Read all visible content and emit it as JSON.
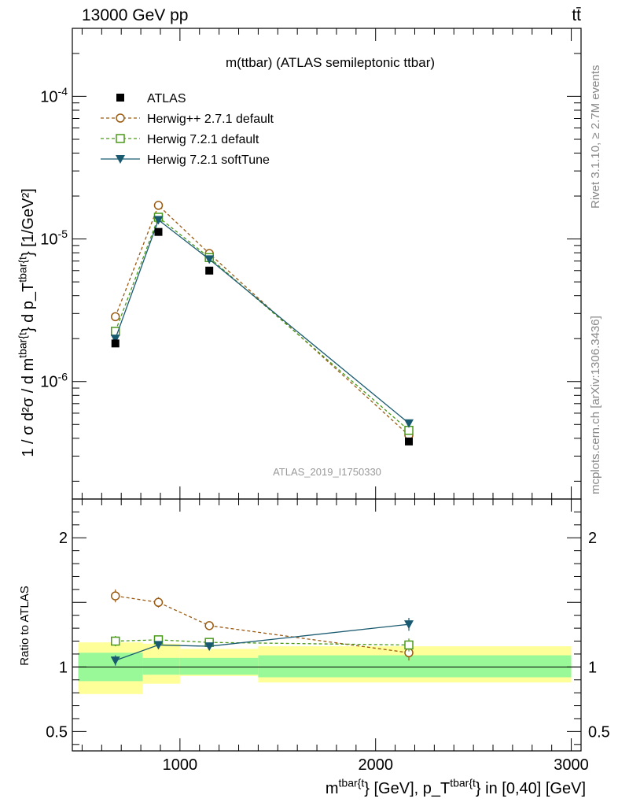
{
  "header": {
    "left_label": "13000 GeV pp",
    "right_label": "tt̄"
  },
  "side_labels": {
    "rivet": "Rivet 3.1.10, ≥ 2.7M events",
    "mcplots": "mcplots.cern.ch [arXiv:1306.3436]"
  },
  "chart_data": {
    "type": "line",
    "title": "m(ttbar) (ATLAS semileptonic ttbar)",
    "analysis_label": "ATLAS_2019_I1750330",
    "ylabel_main": "1 / σ d²σ / d m^{tbar{t}} d p_T^{tbar{t}} [1/GeV²]",
    "ylabel_ratio": "Ratio to ATLAS",
    "xlabel": "m^{tbar{t}} [GeV], p_T^{tbar{t}} in [0,40] [GeV]",
    "xlim": [
      450,
      3050
    ],
    "ylim_main": [
      1.5e-07,
      0.0003
    ],
    "ylim_ratio": [
      0.35,
      2.3
    ],
    "yscale_main": "log",
    "x_ticks": [
      "1000",
      "2000",
      "3000"
    ],
    "y_ticks_main": [
      "10^{-6}",
      "10^{-5}",
      "10^{-4}"
    ],
    "y_ticks_ratio": [
      "0.5",
      "1",
      "2"
    ],
    "legend_position": "top-left",
    "bins": [
      {
        "lo": 450,
        "hi": 810
      },
      {
        "lo": 810,
        "hi": 1000
      },
      {
        "lo": 1000,
        "hi": 1400
      },
      {
        "lo": 1400,
        "hi": 3000
      }
    ],
    "x": [
      670,
      890,
      1150,
      2170
    ],
    "band_inner": [
      [
        0.89,
        1.11
      ],
      [
        0.94,
        1.07
      ],
      [
        0.94,
        1.07
      ],
      [
        0.92,
        1.09
      ]
    ],
    "band_outer": [
      [
        0.79,
        1.19
      ],
      [
        0.87,
        1.18
      ],
      [
        0.93,
        1.14
      ],
      [
        0.88,
        1.16
      ]
    ],
    "series": [
      {
        "name": "ATLAS",
        "marker": "filled-square",
        "color": "#000000",
        "linestyle": "none",
        "values": [
          1.85e-06,
          1.12e-05,
          6e-06,
          3.8e-07
        ],
        "ratio": [
          1.0,
          1.0,
          1.0,
          1.0
        ]
      },
      {
        "name": "Herwig++ 2.7.1 default",
        "marker": "open-circle",
        "color": "#9a5a10",
        "linestyle": "dashed",
        "values": [
          2.85e-06,
          1.72e-05,
          7.9e-06,
          4.2e-07
        ],
        "ratio": [
          1.55,
          1.5,
          1.32,
          1.11
        ],
        "ratio_err": [
          0.05,
          0.04,
          0.03,
          0.06
        ]
      },
      {
        "name": "Herwig 7.2.1 default",
        "marker": "open-square",
        "color": "#4a9a1a",
        "linestyle": "dashed",
        "values": [
          2.25e-06,
          1.42e-05,
          7.4e-06,
          4.55e-07
        ],
        "ratio": [
          1.2,
          1.21,
          1.19,
          1.17
        ],
        "ratio_err": [
          0.04,
          0.03,
          0.03,
          0.05
        ]
      },
      {
        "name": "Herwig 7.2.1 softTune",
        "marker": "filled-triangle-down",
        "color": "#1a5a70",
        "linestyle": "solid",
        "values": [
          2e-06,
          1.36e-05,
          7.2e-06,
          5.1e-07
        ],
        "ratio": [
          1.05,
          1.17,
          1.16,
          1.33
        ],
        "ratio_err": [
          0.04,
          0.03,
          0.03,
          0.05
        ]
      }
    ]
  }
}
